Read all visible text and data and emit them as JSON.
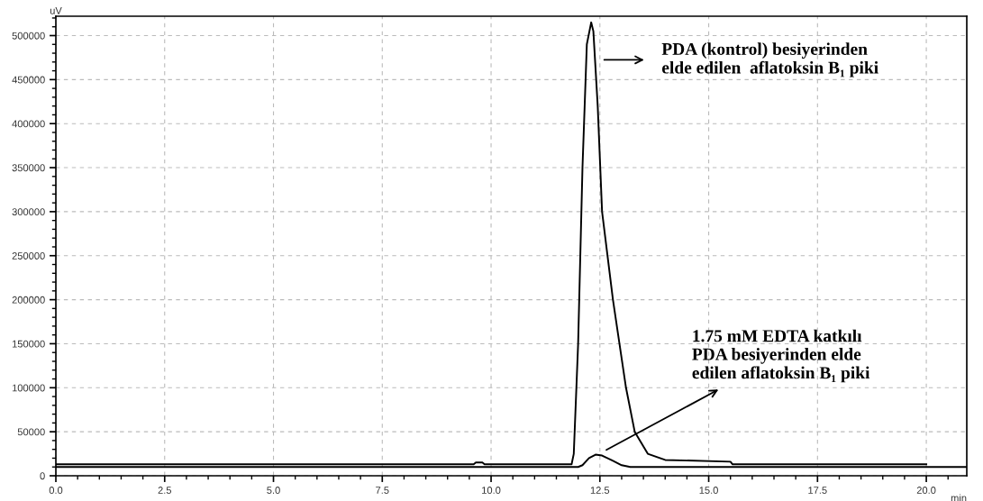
{
  "chart_data": {
    "type": "line",
    "xlabel": "min",
    "ylabel": "uV",
    "xlim": [
      0,
      20.93
    ],
    "ylim": [
      0,
      522000
    ],
    "xticks": [
      {
        "value": 0,
        "label": "0.0"
      },
      {
        "value": 2.5,
        "label": "2.5"
      },
      {
        "value": 5,
        "label": "5.0"
      },
      {
        "value": 7.5,
        "label": "7.5"
      },
      {
        "value": 10,
        "label": "10.0"
      },
      {
        "value": 12.5,
        "label": "12.5"
      },
      {
        "value": 15,
        "label": "15.0"
      },
      {
        "value": 17.5,
        "label": "17.5"
      },
      {
        "value": 20,
        "label": "20.0"
      }
    ],
    "yticks": [
      0,
      50000,
      100000,
      150000,
      200000,
      250000,
      300000,
      350000,
      400000,
      450000,
      500000
    ],
    "grid": true,
    "line_style": "solid",
    "marker": "none",
    "series": [
      {
        "color": "#000000",
        "x": [
          0,
          9.6,
          9.65,
          9.8,
          9.85,
          11.85,
          11.9,
          12.0,
          12.1,
          12.2,
          12.3,
          12.35,
          12.45,
          12.55,
          12.8,
          13.1,
          13.3,
          13.6,
          14.0,
          15.5,
          15.55,
          20.0
        ],
        "values": [
          13000,
          13000,
          15000,
          15000,
          13000,
          13000,
          25000,
          150000,
          350000,
          490000,
          515000,
          505000,
          420000,
          300000,
          200000,
          100000,
          50000,
          25000,
          18000,
          16000,
          13000,
          13000
        ]
      },
      {
        "color": "#000000",
        "x": [
          0,
          12.0,
          12.1,
          12.25,
          12.4,
          12.55,
          12.8,
          13.0,
          13.2,
          20.93
        ],
        "values": [
          10000,
          10000,
          12000,
          20000,
          24000,
          23000,
          17000,
          12000,
          10000,
          10000
        ]
      }
    ],
    "annotations": [
      "PDA (kontrol) besiyerinden\nelde edilen  aflatoksin B₁ piki",
      {
        "text": "1.75 mM EDTA katkılı\nPDA besiyerinden elde\nedilen aflatoksin B₁ piki",
        "x": 12.6,
        "y": 28000
      }
    ]
  }
}
